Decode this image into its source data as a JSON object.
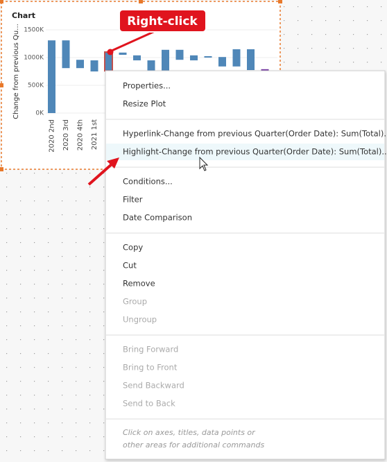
{
  "callout": "Right-click",
  "chart": {
    "type": "waterfall",
    "title": "Chart",
    "y_label": "Change from previous Qu...",
    "ylim": [
      0,
      1500000
    ],
    "yticks": [
      {
        "value": 0,
        "label": "0K"
      },
      {
        "value": 500000,
        "label": "500K"
      },
      {
        "value": 1000000,
        "label": "1000K"
      },
      {
        "value": 1500000,
        "label": "1500K"
      }
    ],
    "grid": true,
    "categories": [
      "2020 2nd",
      "2020 3rd",
      "2020 4th",
      "2021 1st",
      null,
      null,
      null,
      null,
      null,
      null,
      null,
      null,
      null,
      null,
      null,
      null
    ],
    "bars": [
      {
        "low": 0,
        "high": 1310000,
        "color": "#4f87b8"
      },
      {
        "low": 810000,
        "high": 1310000,
        "color": "#4f87b8"
      },
      {
        "low": 810000,
        "high": 960000,
        "color": "#4f87b8"
      },
      {
        "low": 750000,
        "high": 950000,
        "color": "#4f87b8"
      },
      {
        "low": 760000,
        "high": 1100000,
        "color": "#4f87b8",
        "selected": true
      },
      {
        "low": 1050000,
        "high": 1090000,
        "color": "#4f87b8"
      },
      {
        "low": 950000,
        "high": 1040000,
        "color": "#4f87b8"
      },
      {
        "low": 750000,
        "high": 950000,
        "color": "#4f87b8"
      },
      {
        "low": 760000,
        "high": 1140000,
        "color": "#4f87b8"
      },
      {
        "low": 960000,
        "high": 1140000,
        "color": "#4f87b8"
      },
      {
        "low": 950000,
        "high": 1040000,
        "color": "#4f87b8"
      },
      {
        "low": 1000000,
        "high": 1025000,
        "color": "#4f87b8"
      },
      {
        "low": 840000,
        "high": 1010000,
        "color": "#4f87b8"
      },
      {
        "low": 840000,
        "high": 1150000,
        "color": "#4f87b8"
      },
      {
        "low": 775000,
        "high": 1150000,
        "color": "#4f87b8"
      },
      {
        "low": 750000,
        "high": 790000,
        "color": "#7030a0"
      }
    ]
  },
  "menu": {
    "groups": [
      {
        "items": [
          {
            "label": "Properties...",
            "enabled": true
          },
          {
            "label": "Resize Plot",
            "enabled": true
          }
        ]
      },
      {
        "items": [
          {
            "label": "Hyperlink-Change from previous Quarter(Order Date): Sum(Total)...",
            "enabled": true
          },
          {
            "label": "Highlight-Change from previous Quarter(Order Date): Sum(Total)...",
            "enabled": true,
            "hovered": true
          }
        ]
      },
      {
        "items": [
          {
            "label": "Conditions...",
            "enabled": true
          },
          {
            "label": "Filter",
            "enabled": true
          },
          {
            "label": "Date Comparison",
            "enabled": true
          }
        ]
      },
      {
        "items": [
          {
            "label": "Copy",
            "enabled": true
          },
          {
            "label": "Cut",
            "enabled": true
          },
          {
            "label": "Remove",
            "enabled": true
          },
          {
            "label": "Group",
            "enabled": false
          },
          {
            "label": "Ungroup",
            "enabled": false
          }
        ]
      },
      {
        "items": [
          {
            "label": "Bring Forward",
            "enabled": false
          },
          {
            "label": "Bring to Front",
            "enabled": false
          },
          {
            "label": "Send Backward",
            "enabled": false
          },
          {
            "label": "Send to Back",
            "enabled": false
          }
        ]
      }
    ],
    "hint": [
      "Click on axes, titles, data points or",
      "other areas for additional commands"
    ]
  }
}
